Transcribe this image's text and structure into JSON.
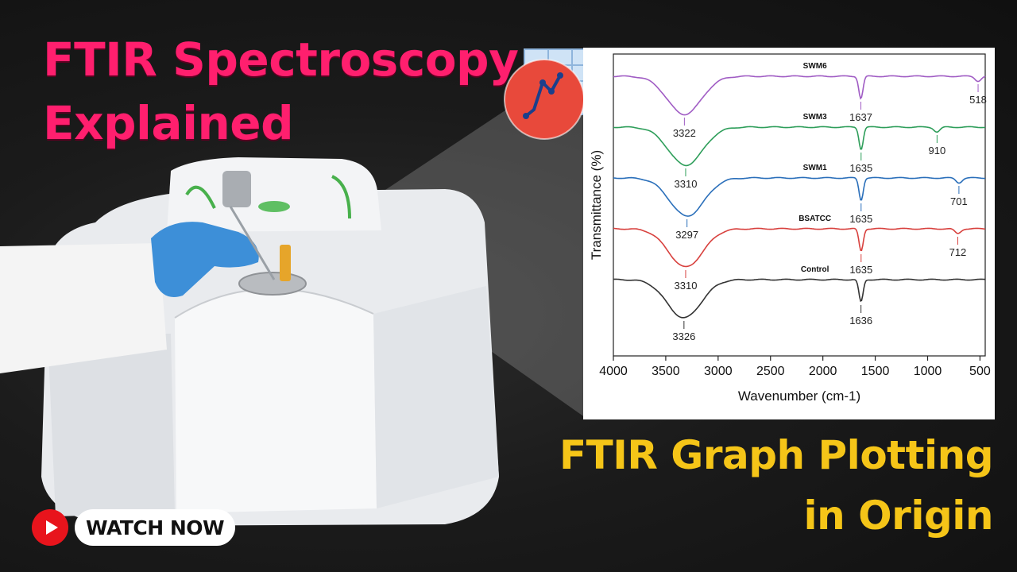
{
  "headline": {
    "line1": "FTIR Spectroscopy",
    "line2": "Explained"
  },
  "subheadline": {
    "line1": "FTIR Graph Plotting",
    "line2": "in Origin"
  },
  "cta": {
    "label": "WATCH NOW",
    "icon": "youtube-play-icon"
  },
  "colors": {
    "headline": "#ff1f6e",
    "subheadline": "#f5c518",
    "cta_icon": "#e8141c"
  },
  "chart_data": {
    "type": "line",
    "xlabel": "Wavenumber (cm-1)",
    "ylabel": "Transmittance (%)",
    "x_ticks": [
      4000,
      3500,
      3000,
      2500,
      2000,
      1500,
      1000,
      500
    ],
    "xlim": [
      4000,
      450
    ],
    "x_reversed": true,
    "y_ticks": false,
    "grid": false,
    "series": [
      {
        "name": "SWM6",
        "color": "#a05cc4",
        "baseline": 1,
        "peaks": [
          {
            "x": 3322,
            "label": "3322"
          },
          {
            "x": 1637,
            "label": "1637"
          },
          {
            "x": 518,
            "label": "518"
          }
        ]
      },
      {
        "name": "SWM3",
        "color": "#2e9e5a",
        "baseline": 2,
        "peaks": [
          {
            "x": 3310,
            "label": "3310"
          },
          {
            "x": 1635,
            "label": "1635"
          },
          {
            "x": 910,
            "label": "910"
          }
        ]
      },
      {
        "name": "SWM1",
        "color": "#2a6fba",
        "baseline": 3,
        "peaks": [
          {
            "x": 3297,
            "label": "3297"
          },
          {
            "x": 1635,
            "label": "1635"
          },
          {
            "x": 701,
            "label": "701"
          }
        ]
      },
      {
        "name": "BSATCC",
        "color": "#d8413e",
        "baseline": 4,
        "peaks": [
          {
            "x": 3310,
            "label": "3310"
          },
          {
            "x": 1635,
            "label": "1635"
          },
          {
            "x": 712,
            "label": "712"
          }
        ]
      },
      {
        "name": "Control",
        "color": "#333333",
        "baseline": 5,
        "peaks": [
          {
            "x": 3326,
            "label": "3326"
          },
          {
            "x": 1636,
            "label": "1636"
          }
        ]
      }
    ]
  }
}
